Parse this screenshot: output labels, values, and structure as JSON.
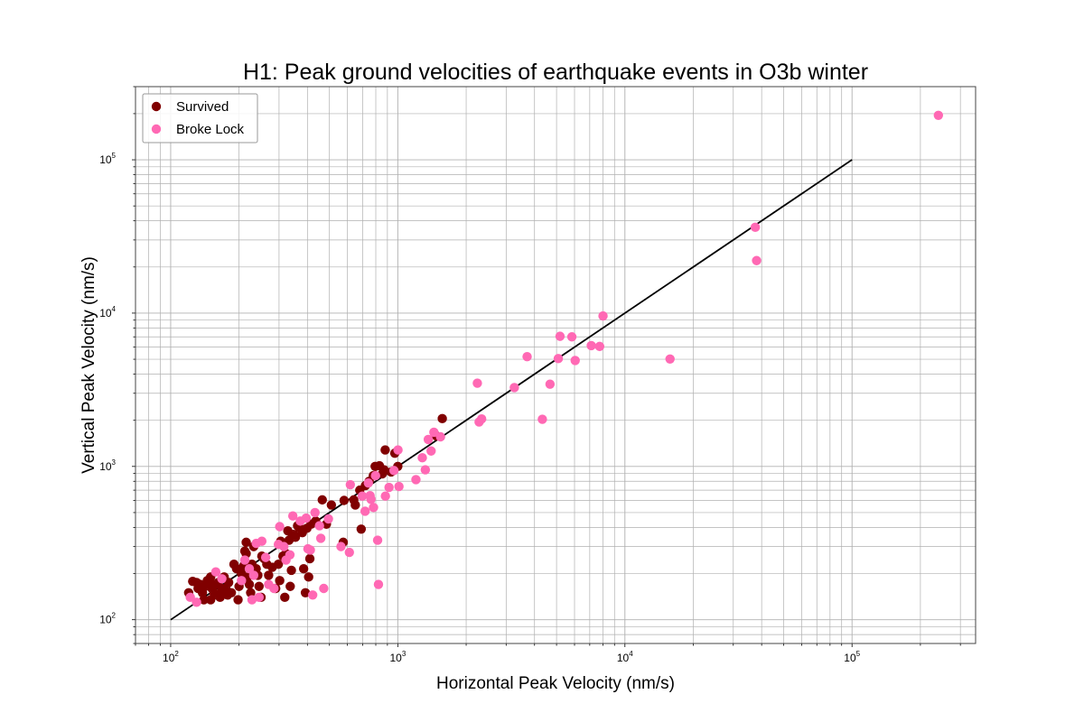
{
  "chart_data": {
    "type": "scatter",
    "title": "H1: Peak ground velocities of earthquake events in O3b winter",
    "xlabel": "Horizontal Peak Velocity (nm/s)",
    "ylabel": "Vertical Peak Velocity (nm/s)",
    "xscale": "log",
    "yscale": "log",
    "xlim": [
      70,
      350000
    ],
    "ylim": [
      70,
      300000
    ],
    "grid": true,
    "legend_position": "top-left",
    "x_ticks": [
      {
        "value": 100,
        "label": "10",
        "exp": "2"
      },
      {
        "value": 1000,
        "label": "10",
        "exp": "3"
      },
      {
        "value": 10000,
        "label": "10",
        "exp": "4"
      },
      {
        "value": 100000,
        "label": "10",
        "exp": "5"
      }
    ],
    "y_ticks": [
      {
        "value": 100,
        "label": "10",
        "exp": "2"
      },
      {
        "value": 1000,
        "label": "10",
        "exp": "3"
      },
      {
        "value": 10000,
        "label": "10",
        "exp": "4"
      },
      {
        "value": 100000,
        "label": "10",
        "exp": "5"
      }
    ],
    "reference_line": {
      "x": [
        100,
        100000
      ],
      "y": [
        100,
        100000
      ],
      "color": "#000000"
    },
    "series": [
      {
        "name": "Survived",
        "color": "#800000",
        "points": [
          [
            120,
            150
          ],
          [
            125,
            178
          ],
          [
            130,
            175
          ],
          [
            132,
            160
          ],
          [
            135,
            170
          ],
          [
            138,
            150
          ],
          [
            140,
            135
          ],
          [
            142,
            165
          ],
          [
            145,
            180
          ],
          [
            148,
            175
          ],
          [
            150,
            135
          ],
          [
            150,
            190
          ],
          [
            152,
            160
          ],
          [
            155,
            150
          ],
          [
            158,
            170
          ],
          [
            160,
            145
          ],
          [
            162,
            175
          ],
          [
            165,
            140
          ],
          [
            168,
            160
          ],
          [
            170,
            150
          ],
          [
            172,
            190
          ],
          [
            175,
            160
          ],
          [
            178,
            145
          ],
          [
            180,
            175
          ],
          [
            185,
            150
          ],
          [
            190,
            230
          ],
          [
            195,
            215
          ],
          [
            198,
            135
          ],
          [
            200,
            165
          ],
          [
            205,
            200
          ],
          [
            210,
            225
          ],
          [
            212,
            280
          ],
          [
            215,
            320
          ],
          [
            215,
            270
          ],
          [
            218,
            190
          ],
          [
            222,
            170
          ],
          [
            225,
            150
          ],
          [
            228,
            230
          ],
          [
            232,
            300
          ],
          [
            238,
            215
          ],
          [
            242,
            195
          ],
          [
            245,
            165
          ],
          [
            250,
            140
          ],
          [
            252,
            260
          ],
          [
            258,
            250
          ],
          [
            265,
            230
          ],
          [
            270,
            195
          ],
          [
            280,
            220
          ],
          [
            290,
            160
          ],
          [
            298,
            230
          ],
          [
            302,
            180
          ],
          [
            305,
            325
          ],
          [
            312,
            260
          ],
          [
            318,
            140
          ],
          [
            322,
            270
          ],
          [
            328,
            380
          ],
          [
            332,
            330
          ],
          [
            336,
            165
          ],
          [
            340,
            210
          ],
          [
            344,
            360
          ],
          [
            348,
            360
          ],
          [
            354,
            345
          ],
          [
            362,
            410
          ],
          [
            368,
            400
          ],
          [
            380,
            370
          ],
          [
            385,
            215
          ],
          [
            392,
            150
          ],
          [
            398,
            395
          ],
          [
            405,
            190
          ],
          [
            410,
            250
          ],
          [
            415,
            420
          ],
          [
            435,
            440
          ],
          [
            465,
            605
          ],
          [
            485,
            420
          ],
          [
            510,
            560
          ],
          [
            575,
            320
          ],
          [
            580,
            600
          ],
          [
            640,
            605
          ],
          [
            650,
            560
          ],
          [
            680,
            700
          ],
          [
            690,
            390
          ],
          [
            720,
            750
          ],
          [
            748,
            800
          ],
          [
            780,
            870
          ],
          [
            795,
            1000
          ],
          [
            830,
            1010
          ],
          [
            855,
            895
          ],
          [
            870,
            950
          ],
          [
            880,
            1280
          ],
          [
            935,
            920
          ],
          [
            970,
            1220
          ],
          [
            1000,
            1000
          ],
          [
            1480,
            1580
          ],
          [
            1570,
            2050
          ]
        ]
      },
      {
        "name": "Broke Lock",
        "color": "#ff69b4",
        "points": [
          [
            122,
            140
          ],
          [
            130,
            130
          ],
          [
            158,
            205
          ],
          [
            168,
            185
          ],
          [
            205,
            180
          ],
          [
            212,
            245
          ],
          [
            222,
            215
          ],
          [
            228,
            135
          ],
          [
            232,
            195
          ],
          [
            238,
            315
          ],
          [
            245,
            140
          ],
          [
            252,
            325
          ],
          [
            262,
            255
          ],
          [
            270,
            170
          ],
          [
            285,
            160
          ],
          [
            298,
            310
          ],
          [
            302,
            405
          ],
          [
            315,
            300
          ],
          [
            322,
            245
          ],
          [
            335,
            265
          ],
          [
            345,
            475
          ],
          [
            372,
            440
          ],
          [
            395,
            460
          ],
          [
            402,
            290
          ],
          [
            412,
            285
          ],
          [
            422,
            145
          ],
          [
            432,
            500
          ],
          [
            452,
            410
          ],
          [
            458,
            340
          ],
          [
            472,
            160
          ],
          [
            495,
            455
          ],
          [
            562,
            300
          ],
          [
            612,
            275
          ],
          [
            618,
            760
          ],
          [
            698,
            640
          ],
          [
            718,
            510
          ],
          [
            742,
            780
          ],
          [
            755,
            645
          ],
          [
            762,
            610
          ],
          [
            782,
            540
          ],
          [
            798,
            870
          ],
          [
            815,
            330
          ],
          [
            822,
            170
          ],
          [
            882,
            640
          ],
          [
            915,
            730
          ],
          [
            962,
            940
          ],
          [
            1002,
            1280
          ],
          [
            1012,
            740
          ],
          [
            1202,
            820
          ],
          [
            1282,
            1140
          ],
          [
            1322,
            950
          ],
          [
            1362,
            1500
          ],
          [
            1402,
            1260
          ],
          [
            1442,
            1670
          ],
          [
            1542,
            1560
          ],
          [
            2240,
            3490
          ],
          [
            2280,
            1950
          ],
          [
            2340,
            2040
          ],
          [
            3260,
            3270
          ],
          [
            3710,
            5200
          ],
          [
            4330,
            2030
          ],
          [
            4680,
            3440
          ],
          [
            5090,
            5050
          ],
          [
            5180,
            7060
          ],
          [
            5840,
            7000
          ],
          [
            6040,
            4910
          ],
          [
            7110,
            6140
          ],
          [
            7740,
            6060
          ],
          [
            8010,
            9580
          ],
          [
            15800,
            5020
          ],
          [
            37500,
            36300
          ],
          [
            38000,
            22000
          ],
          [
            240000,
            195000
          ]
        ]
      }
    ]
  }
}
